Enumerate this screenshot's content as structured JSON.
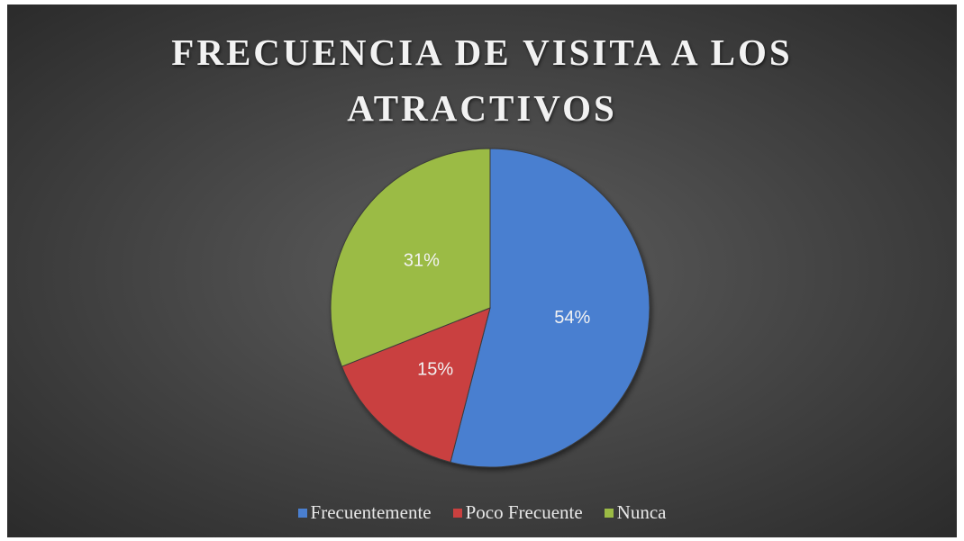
{
  "chart_data": {
    "type": "pie",
    "title": "FRECUENCIA DE VISITA A LOS ATRACTIVOS",
    "categories": [
      "Frecuentemente",
      "Poco Frecuente",
      "Nunca"
    ],
    "values": [
      54,
      15,
      31
    ],
    "value_labels": [
      "54%",
      "15%",
      "31%"
    ],
    "colors": [
      "#4a7fd0",
      "#c9403f",
      "#9bbb45"
    ],
    "legend": "bottom"
  }
}
